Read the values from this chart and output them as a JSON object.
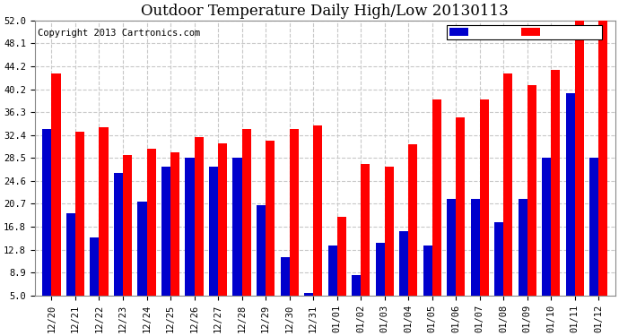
{
  "title": "Outdoor Temperature Daily High/Low 20130113",
  "copyright": "Copyright 2013 Cartronics.com",
  "ylim": [
    5.0,
    52.0
  ],
  "yticks": [
    5.0,
    8.9,
    12.8,
    16.8,
    20.7,
    24.6,
    28.5,
    32.4,
    36.3,
    40.2,
    44.2,
    48.1,
    52.0
  ],
  "categories": [
    "12/20",
    "12/21",
    "12/22",
    "12/23",
    "12/24",
    "12/25",
    "12/26",
    "12/27",
    "12/28",
    "12/29",
    "12/30",
    "12/31",
    "01/01",
    "01/02",
    "01/03",
    "01/04",
    "01/05",
    "01/06",
    "01/07",
    "01/08",
    "01/09",
    "01/10",
    "01/11",
    "01/12"
  ],
  "high": [
    43.0,
    33.0,
    33.8,
    29.0,
    30.0,
    29.5,
    32.0,
    31.0,
    33.5,
    31.5,
    33.5,
    34.0,
    18.5,
    27.5,
    27.0,
    30.8,
    38.5,
    35.5,
    38.5,
    43.0,
    41.0,
    43.5,
    52.0,
    52.0
  ],
  "low": [
    33.5,
    19.0,
    15.0,
    26.0,
    21.0,
    27.0,
    28.5,
    27.0,
    28.5,
    20.5,
    11.5,
    5.5,
    13.5,
    8.5,
    14.0,
    16.0,
    13.5,
    21.5,
    21.5,
    17.5,
    21.5,
    28.5,
    39.5,
    28.5
  ],
  "high_color": "#ff0000",
  "low_color": "#0000cc",
  "bg_color": "#ffffff",
  "plot_bg_color": "#ffffff",
  "grid_color": "#c8c8c8",
  "title_fontsize": 12,
  "copyright_fontsize": 7.5,
  "tick_fontsize": 7.5,
  "bar_width": 0.38,
  "figwidth": 6.9,
  "figheight": 3.75,
  "dpi": 100
}
